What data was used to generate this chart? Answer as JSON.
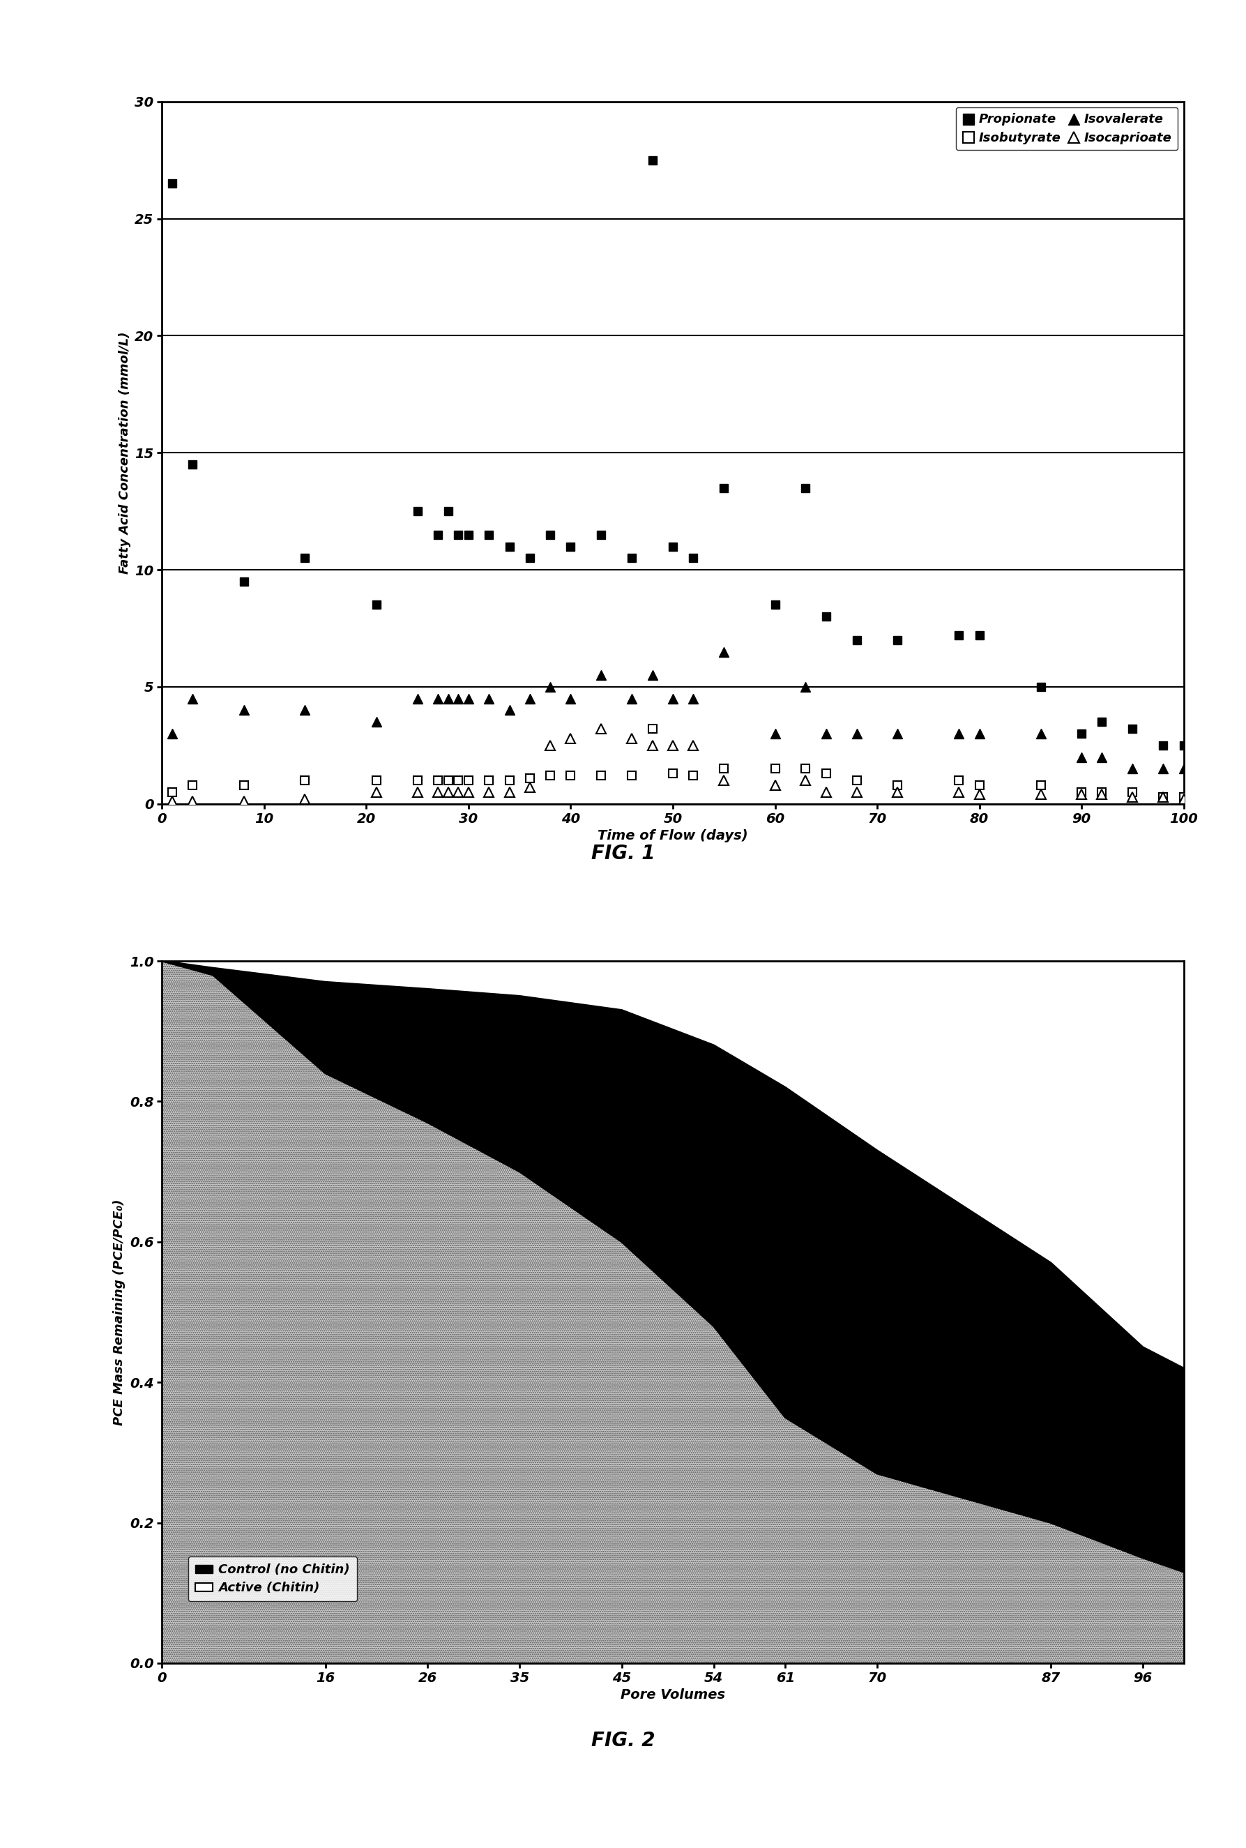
{
  "fig1": {
    "xlabel": "Time of Flow (days)",
    "ylabel": "Fatty Acid Concentration (mmol/L)",
    "xlim": [
      0,
      100
    ],
    "ylim": [
      0,
      30
    ],
    "yticks": [
      0,
      5,
      10,
      15,
      20,
      25,
      30
    ],
    "xticks": [
      0,
      10,
      20,
      30,
      40,
      50,
      60,
      70,
      80,
      90,
      100
    ],
    "propionate_x": [
      1,
      3,
      8,
      14,
      21,
      25,
      27,
      28,
      29,
      30,
      32,
      34,
      36,
      38,
      40,
      43,
      46,
      48,
      50,
      52,
      55,
      60,
      63,
      65,
      68,
      72,
      78,
      80,
      86,
      90,
      92,
      95,
      98,
      100
    ],
    "propionate_y": [
      26.5,
      14.5,
      9.5,
      10.5,
      8.5,
      12.5,
      11.5,
      12.5,
      11.5,
      11.5,
      11.5,
      11.0,
      10.5,
      11.5,
      11.0,
      11.5,
      10.5,
      27.5,
      11.0,
      10.5,
      13.5,
      8.5,
      13.5,
      8.0,
      7.0,
      7.0,
      7.2,
      7.2,
      5.0,
      3.0,
      3.5,
      3.2,
      2.5,
      2.5
    ],
    "isobutyrate_x": [
      1,
      3,
      8,
      14,
      21,
      25,
      27,
      28,
      29,
      30,
      32,
      34,
      36,
      38,
      40,
      43,
      46,
      48,
      50,
      52,
      55,
      60,
      63,
      65,
      68,
      72,
      78,
      80,
      86,
      90,
      92,
      95,
      98,
      100
    ],
    "isobutyrate_y": [
      0.5,
      0.8,
      0.8,
      1.0,
      1.0,
      1.0,
      1.0,
      1.0,
      1.0,
      1.0,
      1.0,
      1.0,
      1.1,
      1.2,
      1.2,
      1.2,
      1.2,
      3.2,
      1.3,
      1.2,
      1.5,
      1.5,
      1.5,
      1.3,
      1.0,
      0.8,
      1.0,
      0.8,
      0.8,
      0.5,
      0.5,
      0.5,
      0.3,
      0.3
    ],
    "isovalerate_x": [
      1,
      3,
      8,
      14,
      21,
      25,
      27,
      28,
      29,
      30,
      32,
      34,
      36,
      38,
      40,
      43,
      46,
      48,
      50,
      52,
      55,
      60,
      63,
      65,
      68,
      72,
      78,
      80,
      86,
      90,
      92,
      95,
      98,
      100
    ],
    "isovalerate_y": [
      3.0,
      4.5,
      4.0,
      4.0,
      3.5,
      4.5,
      4.5,
      4.5,
      4.5,
      4.5,
      4.5,
      4.0,
      4.5,
      5.0,
      4.5,
      5.5,
      4.5,
      5.5,
      4.5,
      4.5,
      6.5,
      3.0,
      5.0,
      3.0,
      3.0,
      3.0,
      3.0,
      3.0,
      3.0,
      2.0,
      2.0,
      1.5,
      1.5,
      1.5
    ],
    "isocaproate_x": [
      1,
      3,
      8,
      14,
      21,
      25,
      27,
      28,
      29,
      30,
      32,
      34,
      36,
      38,
      40,
      43,
      46,
      48,
      50,
      52,
      55,
      60,
      63,
      65,
      68,
      72,
      78,
      80,
      86,
      90,
      92,
      95,
      98,
      100
    ],
    "isocaproate_y": [
      0.1,
      0.1,
      0.1,
      0.2,
      0.5,
      0.5,
      0.5,
      0.5,
      0.5,
      0.5,
      0.5,
      0.5,
      0.7,
      2.5,
      2.8,
      3.2,
      2.8,
      2.5,
      2.5,
      2.5,
      1.0,
      0.8,
      1.0,
      0.5,
      0.5,
      0.5,
      0.5,
      0.4,
      0.4,
      0.4,
      0.4,
      0.3,
      0.3,
      0.2
    ]
  },
  "fig2": {
    "xlabel": "Pore Volumes",
    "ylabel": "PCE Mass Remaining (PCE/PCE₀)",
    "xlim": [
      0,
      100
    ],
    "ylim": [
      0.0,
      1.0
    ],
    "yticks": [
      0.0,
      0.2,
      0.4,
      0.6,
      0.8,
      1.0
    ],
    "xtick_positions": [
      0,
      16,
      26,
      35,
      45,
      54,
      61,
      70,
      87,
      96
    ],
    "xtick_labels": [
      "0",
      "16",
      "26",
      "35",
      "45",
      "54",
      "61",
      "70",
      "87",
      "96"
    ],
    "control_x": [
      0,
      5,
      16,
      26,
      35,
      45,
      54,
      61,
      70,
      87,
      96,
      100
    ],
    "control_y": [
      1.0,
      0.99,
      0.97,
      0.96,
      0.95,
      0.93,
      0.88,
      0.82,
      0.73,
      0.57,
      0.45,
      0.42
    ],
    "active_x": [
      0,
      5,
      16,
      26,
      35,
      45,
      54,
      61,
      70,
      87,
      96,
      100
    ],
    "active_y": [
      1.0,
      0.98,
      0.84,
      0.77,
      0.7,
      0.6,
      0.48,
      0.35,
      0.27,
      0.2,
      0.15,
      0.13
    ]
  }
}
